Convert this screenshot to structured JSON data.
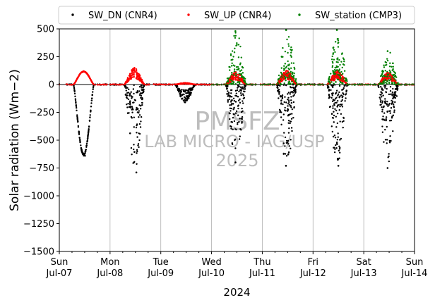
{
  "chart_data": {
    "type": "scatter",
    "title": "",
    "xlabel": "2024",
    "ylabel": "Solar radiation (Wm−2)",
    "ylim": [
      -1500,
      500
    ],
    "xlim_days": [
      "Jul-07",
      "Jul-14"
    ],
    "grid": "vertical lines at day boundaries",
    "legend_position": "top, above plot",
    "x_tick_labels": [
      {
        "day": "Sun",
        "date": "Jul-07"
      },
      {
        "day": "Mon",
        "date": "Jul-08"
      },
      {
        "day": "Tue",
        "date": "Jul-09"
      },
      {
        "day": "Wed",
        "date": "Jul-10"
      },
      {
        "day": "Thu",
        "date": "Jul-11"
      },
      {
        "day": "Fri",
        "date": "Jul-12"
      },
      {
        "day": "Sat",
        "date": "Jul-13"
      },
      {
        "day": "Sun",
        "date": "Jul-14"
      }
    ],
    "y_ticks": [
      500,
      250,
      0,
      -250,
      -500,
      -750,
      -1000,
      -1250,
      -1500
    ],
    "zero_line": 0,
    "series": [
      {
        "name": "SW_DN (CNR4)",
        "color": "#000000",
        "daily_min": [
          -640,
          -790,
          -160,
          -700,
          -730,
          -730,
          -750
        ]
      },
      {
        "name": "SW_UP (CNR4)",
        "color": "#ff0000",
        "daily_max": [
          120,
          150,
          15,
          110,
          125,
          120,
          105
        ]
      },
      {
        "name": "SW_station (CMP3)",
        "color": "#008000",
        "daily_max": [
          null,
          null,
          null,
          480,
          490,
          490,
          300
        ],
        "starts": "Jul-10"
      }
    ],
    "watermark": [
      "PMSFZ",
      "LAB MICRO - IAG/USP",
      "2025"
    ]
  }
}
